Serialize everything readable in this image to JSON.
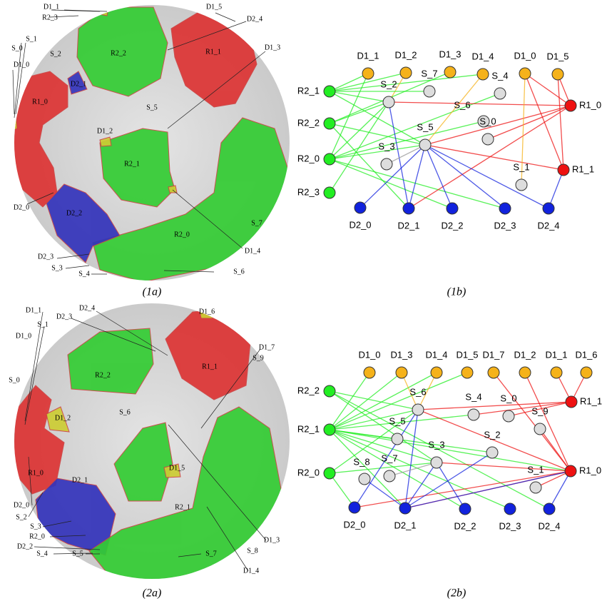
{
  "figure_1a": {
    "caption": "(1a)",
    "labels": [
      "D1_1",
      "R2_3",
      "S_1",
      "S_0",
      "D1_0",
      "S_2",
      "R2_2",
      "D2_1",
      "R1_0",
      "S_5",
      "D1_2",
      "R2_1",
      "D2_0",
      "D2_2",
      "R2_0",
      "S_7",
      "D1_4",
      "D2_3",
      "S_3",
      "S_4",
      "S_6",
      "D1_5",
      "D2_4",
      "D1_3",
      "R1_1"
    ]
  },
  "figure_1b": {
    "caption": "(1b)",
    "nodes": [
      "D1_1",
      "D1_2",
      "D1_3",
      "D1_4",
      "D1_0",
      "D1_5",
      "R2_1",
      "R2_2",
      "R2_0",
      "R2_3",
      "R1_0",
      "R1_1",
      "D2_0",
      "D2_1",
      "D2_2",
      "D2_3",
      "D2_4",
      "S_7",
      "S_2",
      "S_4",
      "S_6",
      "S_0",
      "S_5",
      "S_3",
      "S_1"
    ]
  },
  "figure_2a": {
    "caption": "(2a)",
    "labels": [
      "D1_1",
      "D2_4",
      "D2_3",
      "S_1",
      "D1_0",
      "D1_6",
      "D1_7",
      "S_9",
      "R1_1",
      "R2_2",
      "S_0",
      "D1_2",
      "S_6",
      "R1_0",
      "D1_5",
      "R2_1",
      "D1_3",
      "S_8",
      "D1_4",
      "D2_0",
      "D2_1",
      "S_2",
      "S_3",
      "R2_0",
      "D2_2",
      "S_4",
      "S_5",
      "S_7"
    ]
  },
  "figure_2b": {
    "caption": "(2b)",
    "nodes": [
      "D1_0",
      "D1_3",
      "D1_4",
      "D1_5",
      "D1_7",
      "D1_2",
      "D1_1",
      "D1_6",
      "R2_2",
      "R2_1",
      "R2_0",
      "R1_1",
      "R1_0",
      "D2_0",
      "D2_1",
      "D2_2",
      "D2_3",
      "D2_4",
      "S_6",
      "S_4",
      "S_0",
      "S_9",
      "S_5",
      "S_2",
      "S_3",
      "S_8",
      "S_7",
      "S_1"
    ]
  }
}
